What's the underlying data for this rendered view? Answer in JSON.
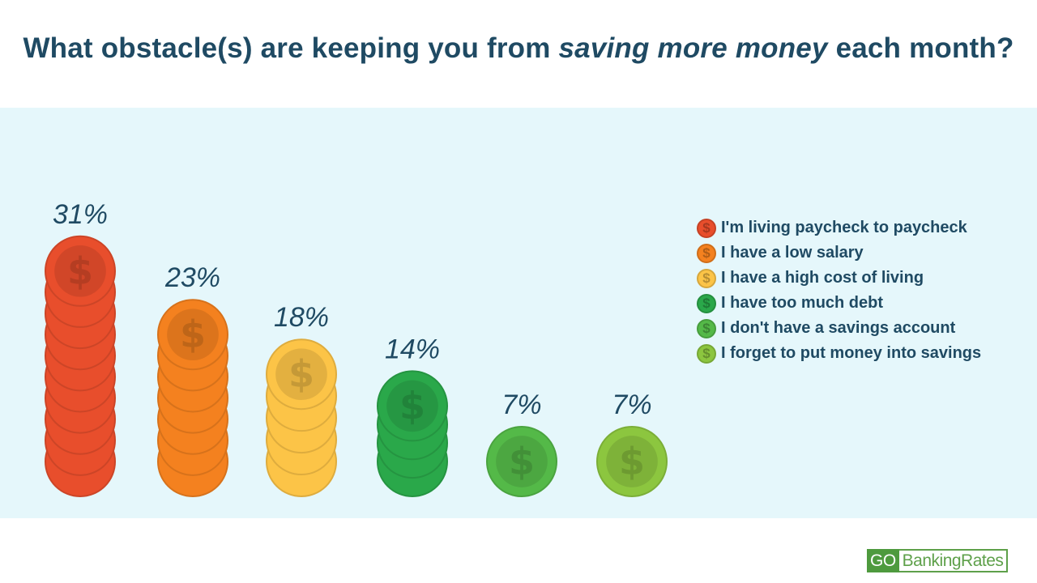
{
  "title": {
    "before": "What obstacle(s) are keeping you from ",
    "emphasis": "saving more money",
    "after": " each month?"
  },
  "chart_data": {
    "type": "bar",
    "categories": [
      "I'm living paycheck to paycheck",
      "I have a low salary",
      "I have a high cost of living",
      "I have too much debt",
      "I don't have a savings account",
      "I forget to put money into savings"
    ],
    "values": [
      31,
      23,
      18,
      14,
      7,
      7
    ],
    "value_labels": [
      "31%",
      "23%",
      "18%",
      "14%",
      "7%",
      "7%"
    ],
    "colors": [
      "#e84e2c",
      "#f4811f",
      "#fcc447",
      "#2aa84a",
      "#54b948",
      "#8cc63f"
    ],
    "mark": "stacked dollar coins",
    "legend_position": "right",
    "grid": false
  },
  "legend": {
    "items": [
      {
        "label": "I'm living paycheck to paycheck",
        "color": "#e84e2c",
        "icon": "dollar-coin-icon"
      },
      {
        "label": "I have a low salary",
        "color": "#f4811f",
        "icon": "dollar-coin-icon"
      },
      {
        "label": "I have a high cost of living",
        "color": "#fcc447",
        "icon": "dollar-coin-icon"
      },
      {
        "label": "I have too much debt",
        "color": "#2aa84a",
        "icon": "dollar-coin-icon"
      },
      {
        "label": "I don't have a savings account",
        "color": "#54b948",
        "icon": "dollar-coin-icon"
      },
      {
        "label": "I forget to put money into savings",
        "color": "#8cc63f",
        "icon": "dollar-coin-icon"
      }
    ]
  },
  "logo": {
    "go": "GO",
    "rest": "BankingRates"
  },
  "colors": {
    "title": "#1f4a63",
    "panel_bg": "#e5f7fb",
    "logo_green": "#4e9a3e"
  }
}
